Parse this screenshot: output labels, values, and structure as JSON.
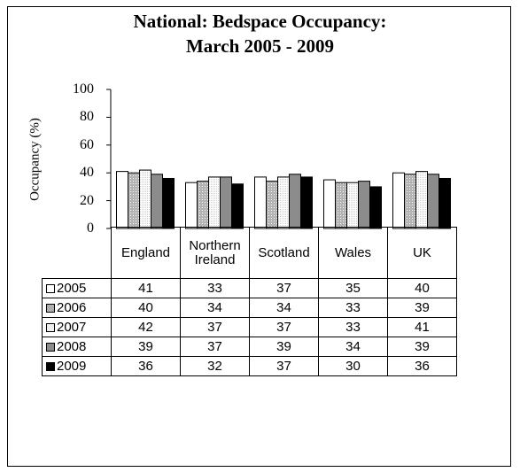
{
  "chart_data": {
    "type": "bar",
    "title": [
      "National: Bedspace Occupancy:",
      "March 2005 - 2009"
    ],
    "ylabel": "Occupancy (%)",
    "ylim": [
      0,
      100
    ],
    "yticks": [
      "0",
      "20",
      "40",
      "60",
      "80",
      "100"
    ],
    "categories": [
      "England",
      "Northern Ireland",
      "Scotland",
      "Wales",
      "UK"
    ],
    "category_lines": [
      [
        "England"
      ],
      [
        "Northern",
        "Ireland"
      ],
      [
        "Scotland"
      ],
      [
        "Wales"
      ],
      [
        "UK"
      ]
    ],
    "series": [
      {
        "name": "2005",
        "values": [
          41,
          33,
          37,
          35,
          40
        ],
        "fill": "#ffffff",
        "pattern": "none"
      },
      {
        "name": "2006",
        "values": [
          40,
          34,
          34,
          33,
          39
        ],
        "fill": "#a6a6a6",
        "pattern": "dots"
      },
      {
        "name": "2007",
        "values": [
          42,
          37,
          37,
          33,
          41
        ],
        "fill": "#ffffff",
        "pattern": "fine"
      },
      {
        "name": "2008",
        "values": [
          39,
          37,
          39,
          34,
          39
        ],
        "fill": "#8c8c8c",
        "pattern": "none"
      },
      {
        "name": "2009",
        "values": [
          36,
          32,
          37,
          30,
          36
        ],
        "fill": "#000000",
        "pattern": "none"
      }
    ],
    "grid": false,
    "legend": "data-table"
  }
}
